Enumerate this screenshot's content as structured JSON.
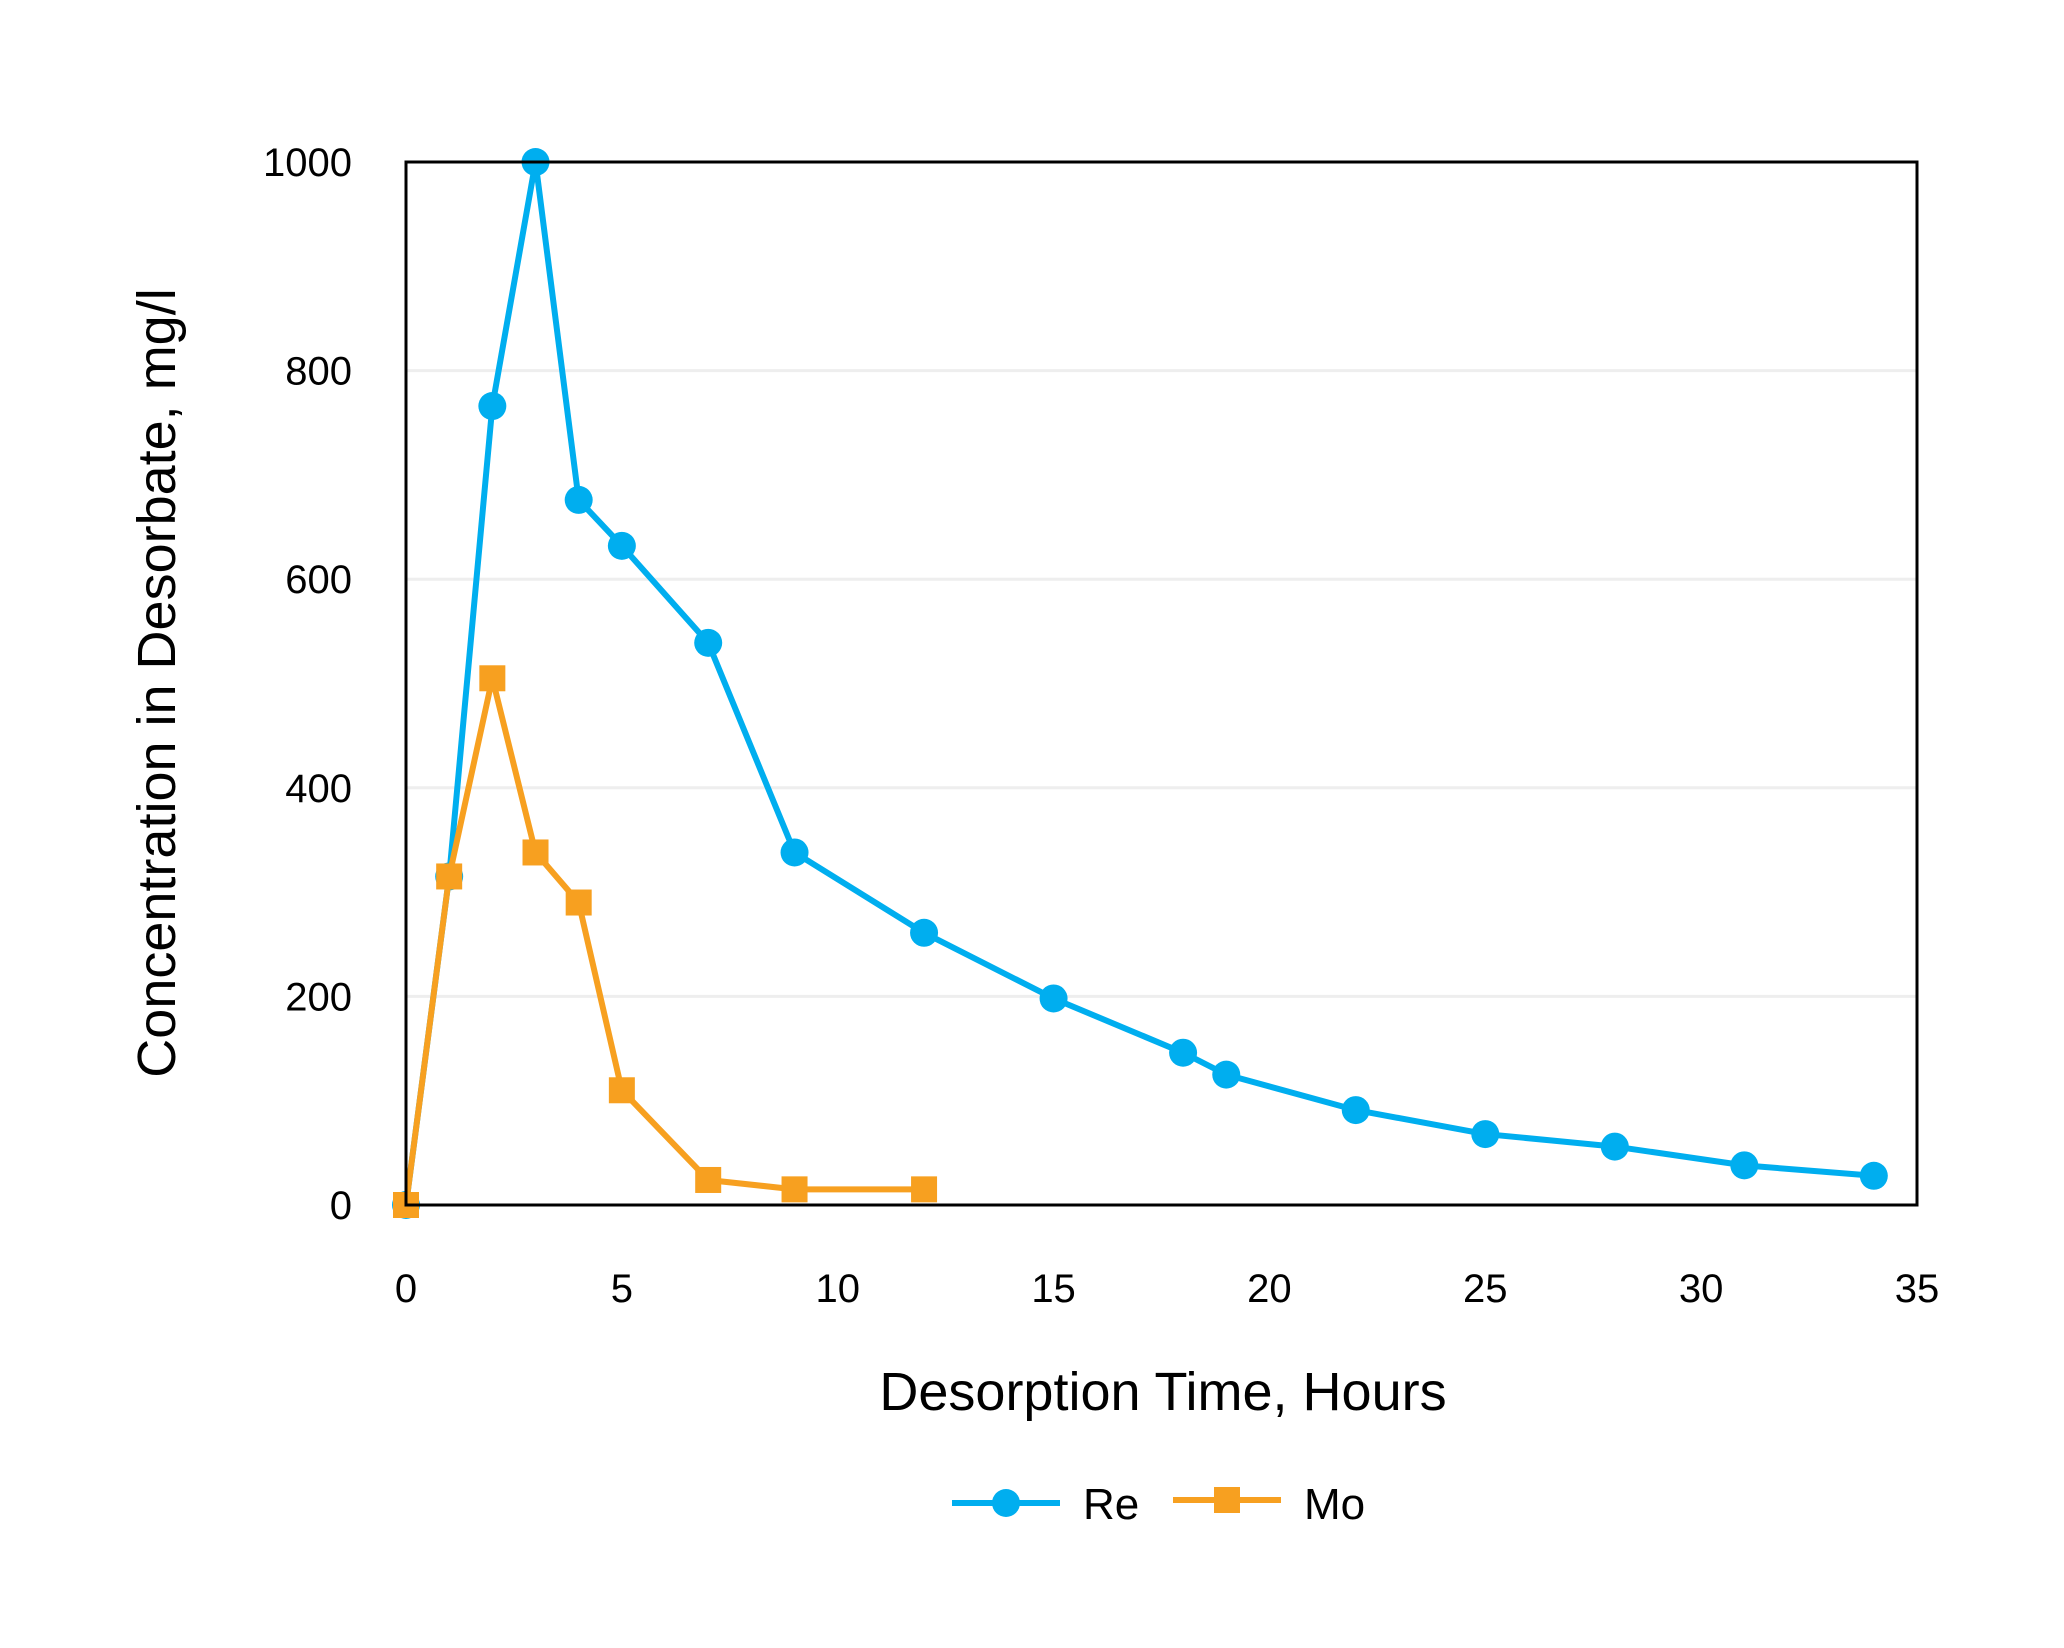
{
  "chart_data": {
    "type": "line",
    "title": "",
    "xlabel": "Desorption Time, Hours",
    "ylabel": "Concentration in Desorbate, mg/l",
    "xlim": [
      0,
      35
    ],
    "ylim": [
      0,
      1000
    ],
    "xticks": [
      "0",
      "5",
      "10",
      "15",
      "20",
      "25",
      "30",
      "35"
    ],
    "yticks": [
      "0",
      "200",
      "400",
      "600",
      "800",
      "1000"
    ],
    "grid": "horizontal",
    "legend_position": "bottom",
    "series": [
      {
        "name": "Re",
        "color": "#00AEEF",
        "marker": "circle",
        "x": [
          0,
          1,
          2,
          3,
          4,
          5,
          7,
          9,
          12,
          15,
          18,
          19,
          22,
          25,
          28,
          31,
          34
        ],
        "y": [
          0,
          315,
          766,
          1000,
          676,
          632,
          539,
          338,
          261,
          198,
          146,
          125,
          91,
          68,
          56,
          38,
          28
        ]
      },
      {
        "name": "Mo",
        "color": "#F7A020",
        "marker": "square",
        "x": [
          0,
          1,
          2,
          3,
          4,
          5,
          7,
          9,
          12
        ],
        "y": [
          0,
          315,
          505,
          338,
          290,
          110,
          24,
          15,
          15
        ]
      }
    ]
  }
}
